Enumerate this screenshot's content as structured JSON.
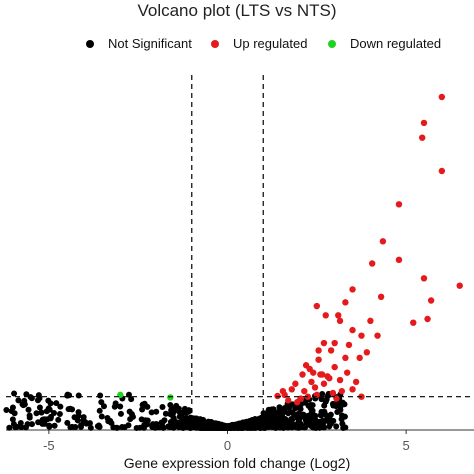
{
  "chart_data": {
    "type": "scatter",
    "title": "Volcano plot (LTS vs NTS)",
    "xlabel": "Gene expression fold change (Log2)",
    "ylabel": "",
    "xlim": [
      -6.2,
      6.9
    ],
    "xticks": [
      -5,
      0,
      5
    ],
    "ylim": [
      0,
      10
    ],
    "fc_thresholds": [
      -1,
      1
    ],
    "p_threshold_line": 0.9,
    "legend": {
      "placement": "top",
      "entries": [
        {
          "name": "Not Significant",
          "color": "#000000"
        },
        {
          "name": "Up regulated",
          "color": "#e41a1c"
        },
        {
          "name": "Down regulated",
          "color": "#1fd31f"
        }
      ]
    },
    "series": [
      {
        "name": "Up regulated",
        "color": "#e41a1c",
        "x": [
          6.0,
          5.5,
          5.45,
          6.0,
          4.8,
          4.35,
          4.05,
          5.5,
          5.7,
          6.5,
          4.8,
          4.3,
          3.5,
          3.3,
          2.5,
          2.75,
          3.1,
          3.15,
          4.0,
          5.2,
          5.6,
          3.5,
          3.75,
          4.2,
          3.0,
          2.7,
          2.55,
          2.9,
          3.4,
          3.3,
          3.7,
          3.9,
          2.55,
          2.1,
          2.2,
          2.3,
          2.4,
          2.6,
          2.8,
          3.0,
          3.15,
          3.35,
          3.6,
          1.9,
          1.8,
          1.55,
          1.6,
          2.35,
          2.05,
          1.95,
          2.15,
          2.25,
          2.45,
          2.7,
          2.95,
          3.2,
          3.5,
          3.75,
          1.4,
          1.7,
          2.85,
          3.05,
          2.5,
          2.65
        ],
        "y": [
          9.0,
          8.3,
          7.9,
          7.0,
          6.1,
          5.1,
          4.5,
          4.1,
          3.5,
          3.9,
          4.6,
          3.6,
          3.8,
          3.45,
          3.35,
          3.1,
          3.1,
          2.95,
          2.95,
          2.9,
          3.0,
          2.7,
          2.55,
          2.55,
          2.35,
          2.35,
          2.15,
          2.15,
          2.3,
          1.95,
          1.95,
          2.1,
          1.9,
          1.5,
          1.75,
          1.65,
          1.55,
          1.5,
          1.45,
          1.7,
          1.35,
          1.55,
          1.3,
          1.25,
          1.1,
          1.05,
          0.95,
          1.3,
          0.85,
          0.75,
          1.05,
          0.9,
          1.15,
          1.25,
          1.0,
          1.05,
          1.1,
          0.9,
          0.92,
          0.8,
          1.4,
          0.85,
          0.95,
          1.5
        ]
      },
      {
        "name": "Down regulated",
        "color": "#1fd31f",
        "x": [
          -3.0,
          -1.6
        ],
        "y": [
          0.95,
          0.88
        ]
      }
    ]
  }
}
